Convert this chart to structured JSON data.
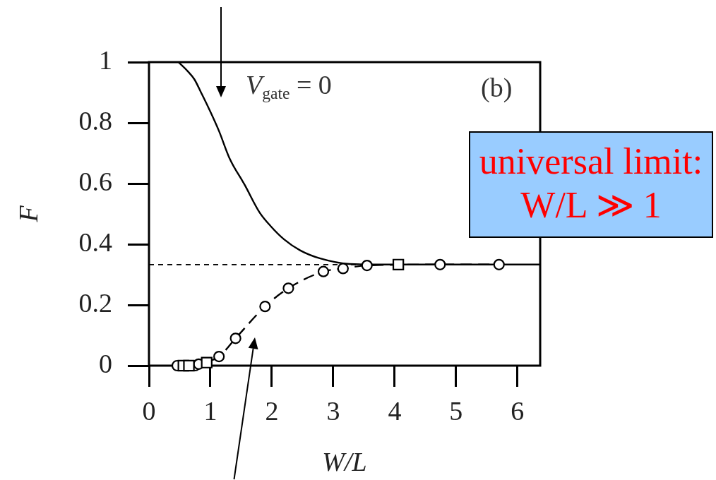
{
  "chart_data": {
    "type": "line",
    "xlabel": "W/L",
    "ylabel": "F",
    "xlim": [
      0,
      6.37
    ],
    "xticks": [
      0,
      1,
      2,
      3,
      4,
      5,
      6
    ],
    "ylim": [
      0,
      1
    ],
    "yticks": [
      0,
      0.2,
      0.4,
      0.6,
      0.8,
      1
    ],
    "series": [
      {
        "color": "#000000",
        "marker": "none",
        "line_style": "solid",
        "x": [
          0.48,
          0.63,
          0.74,
          0.85,
          0.98,
          1.14,
          1.31,
          1.56,
          1.8,
          1.98,
          2.2,
          2.46,
          2.79,
          3.27,
          3.94,
          6.37
        ],
        "values": [
          1.0,
          0.97,
          0.943,
          0.899,
          0.845,
          0.773,
          0.684,
          0.595,
          0.505,
          0.46,
          0.416,
          0.38,
          0.353,
          0.335,
          0.333,
          0.333
        ]
      },
      {
        "color": "#000000",
        "marker": "circle",
        "line_style": "dashed",
        "x": [
          0.46,
          0.75,
          0.81,
          1.14,
          1.41,
          1.89,
          2.27,
          2.84,
          3.16,
          3.55,
          4.74,
          5.7
        ],
        "values": [
          0,
          0,
          0.005,
          0.03,
          0.09,
          0.195,
          0.255,
          0.31,
          0.32,
          0.33,
          0.333,
          0.333
        ]
      },
      {
        "type": "scatter",
        "color": "#000000",
        "marker": "square",
        "x": [
          0.56,
          0.65,
          0.94,
          4.06
        ],
        "values": [
          0,
          0,
          0.01,
          0.333
        ]
      }
    ],
    "ref_lines": [
      {
        "axis": "y",
        "value": 0.333,
        "line_style": "dashed",
        "color": "#000000"
      }
    ],
    "annotations": [
      "V$_{gate}$ = 0",
      "(b)",
      "universal limit:\nW/L ≫ 1"
    ]
  }
}
